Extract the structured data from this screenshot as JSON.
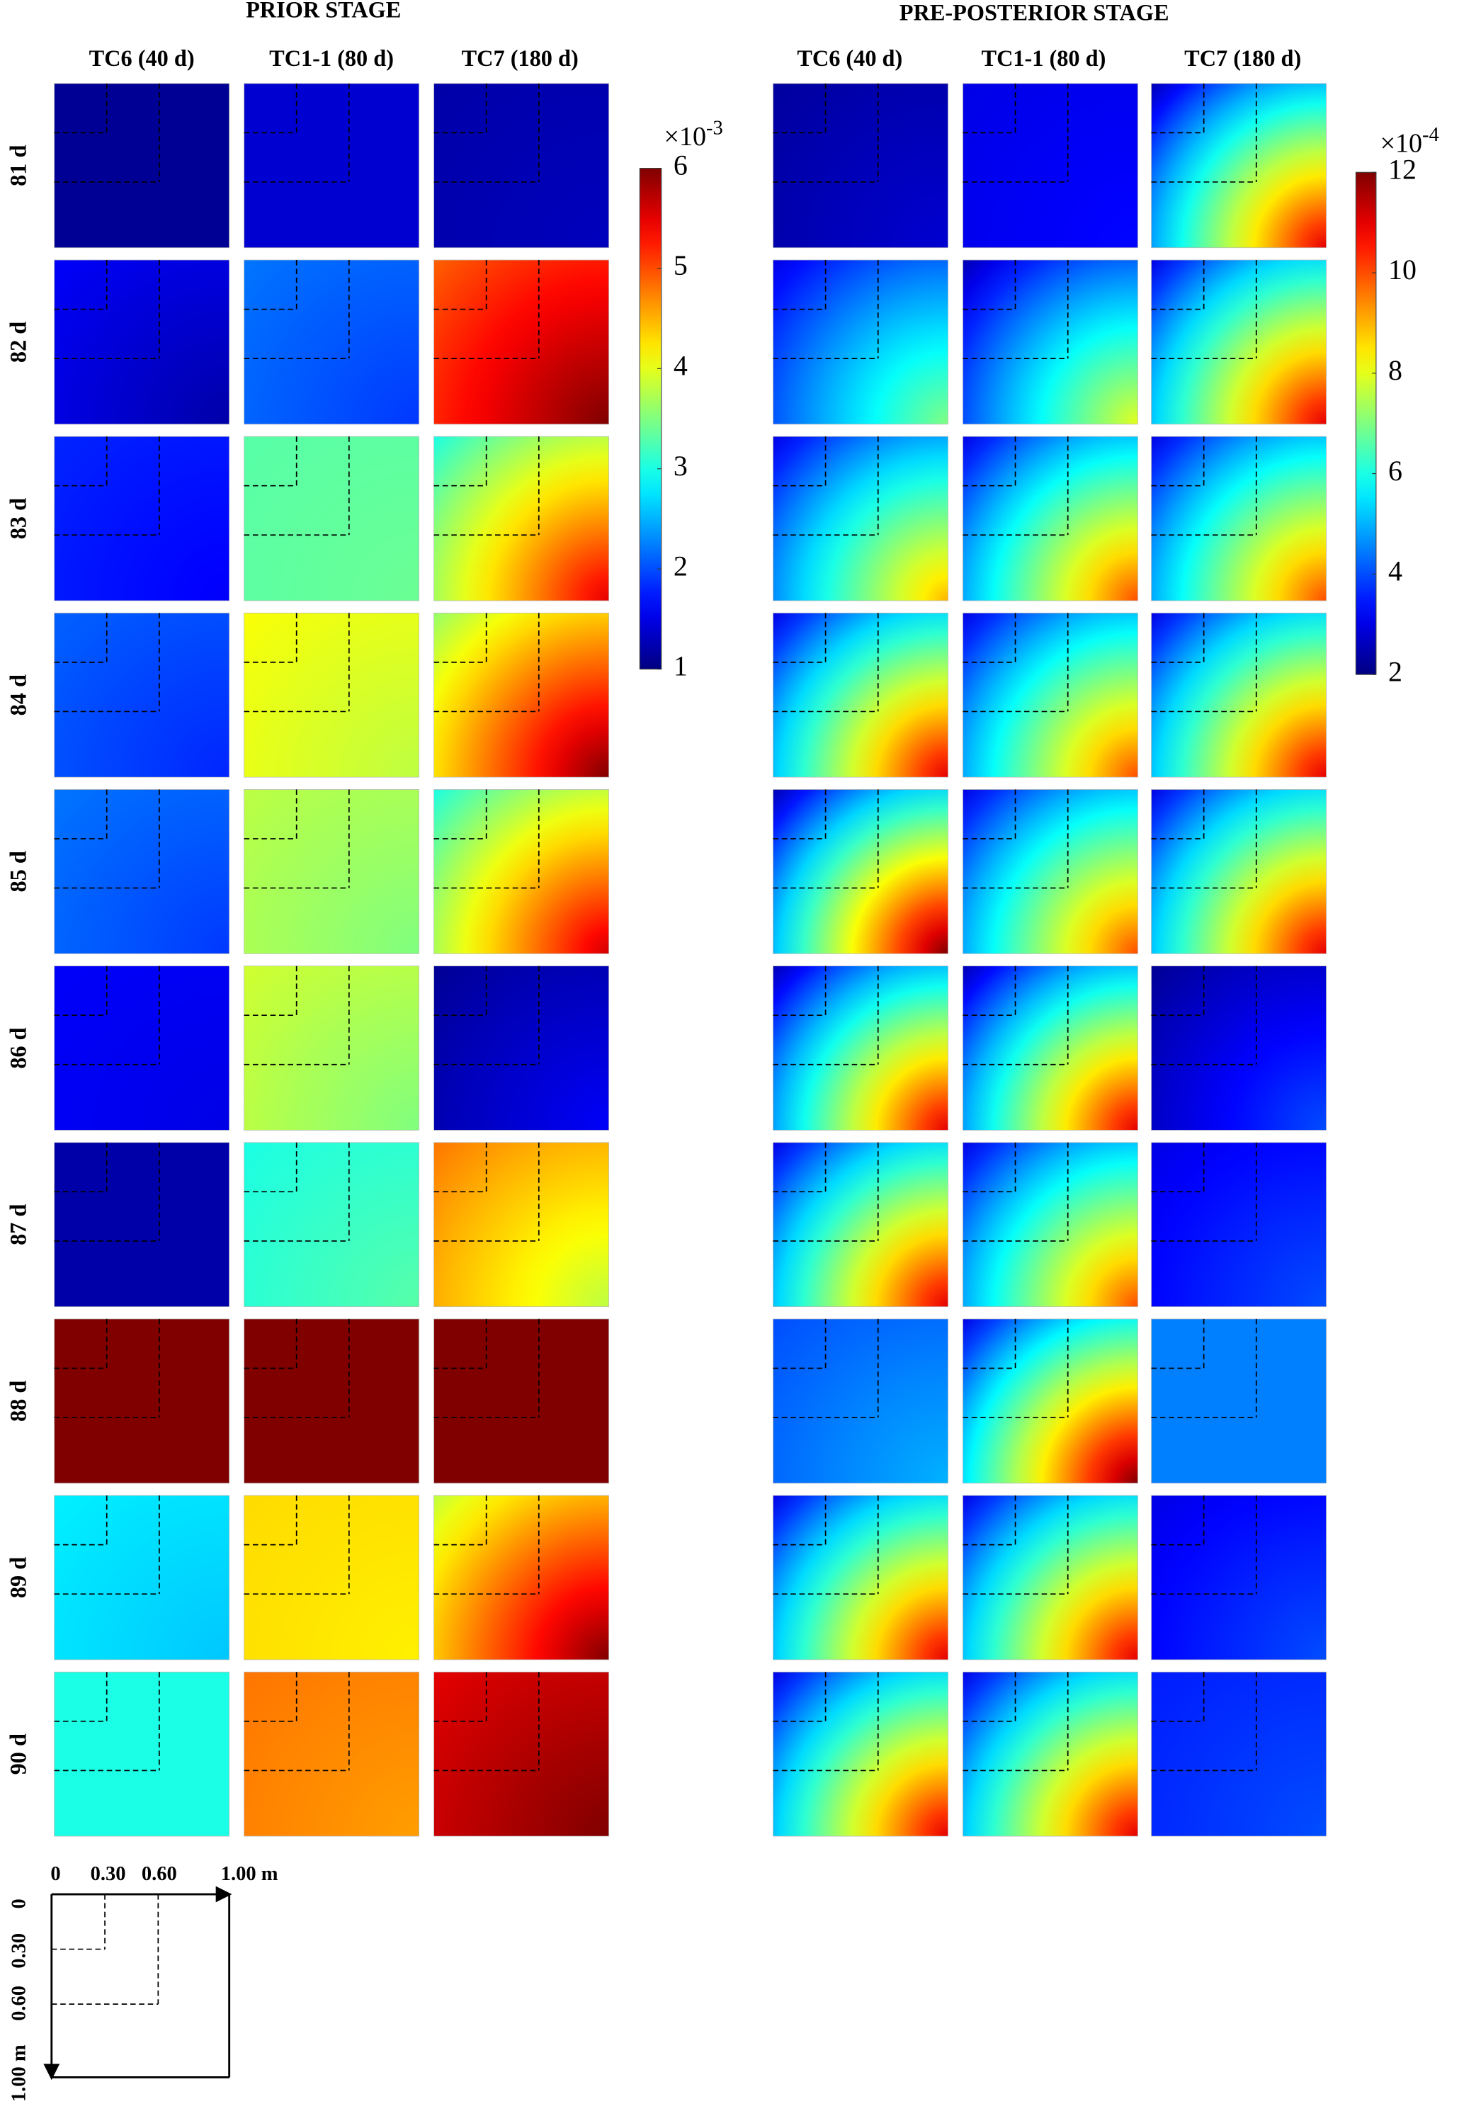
{
  "chart_data": [
    {
      "type": "heatmap",
      "title": "PRIOR STAGE",
      "columns": [
        "TC6 (40 d)",
        "TC1-1 (80 d)",
        "TC7 (180 d)"
      ],
      "rows": [
        "81 d",
        "82 d",
        "83 d",
        "84 d",
        "85 d",
        "86 d",
        "87 d",
        "88 d",
        "89 d",
        "90 d"
      ],
      "values": [
        [
          [
            1.1,
            1.1
          ],
          [
            1.4,
            1.4
          ],
          [
            1.2,
            1.3
          ]
        ],
        [
          [
            1.6,
            1.2
          ],
          [
            2.2,
            1.9
          ],
          [
            4.9,
            6
          ]
        ],
        [
          [
            1.8,
            1.6
          ],
          [
            3.3,
            3.4
          ],
          [
            3,
            5.5
          ]
        ],
        [
          [
            2.1,
            1.8
          ],
          [
            4.1,
            3.8
          ],
          [
            3.6,
            6
          ]
        ],
        [
          [
            2.2,
            1.9
          ],
          [
            3.8,
            3.5
          ],
          [
            3,
            5.6
          ]
        ],
        [
          [
            1.6,
            1.5
          ],
          [
            3.9,
            3.5
          ],
          [
            1.1,
            1.6
          ]
        ],
        [
          [
            1.2,
            1.2
          ],
          [
            3,
            3.3
          ],
          [
            4.8,
            3.8
          ]
        ],
        [
          [
            6,
            6
          ],
          [
            6,
            6
          ],
          [
            6,
            6
          ]
        ],
        [
          [
            2.8,
            2.6
          ],
          [
            4.3,
            4.2
          ],
          [
            3.8,
            6
          ]
        ],
        [
          [
            3,
            3
          ],
          [
            4.8,
            4.6
          ],
          [
            5.5,
            6
          ]
        ]
      ],
      "clim": [
        1,
        6
      ],
      "cticks": [
        1,
        2,
        3,
        4,
        5,
        6
      ],
      "colorbar_base": "×10",
      "colorbar_exponent": "-3",
      "colormap": "jet"
    },
    {
      "type": "heatmap",
      "title": "PRE-POSTERIOR STAGE",
      "columns": [
        "TC6 (40 d)",
        "TC1-1 (80 d)",
        "TC7 (180 d)"
      ],
      "values": [
        [
          [
            2.3,
            2.8
          ],
          [
            3,
            3.3
          ],
          [
            2.5,
            11
          ]
        ],
        [
          [
            3,
            7
          ],
          [
            2.5,
            8
          ],
          [
            3,
            11
          ]
        ],
        [
          [
            3,
            9
          ],
          [
            3,
            10
          ],
          [
            3,
            10
          ]
        ],
        [
          [
            3,
            11
          ],
          [
            3,
            10
          ],
          [
            3,
            11
          ]
        ],
        [
          [
            2.5,
            12
          ],
          [
            3,
            10
          ],
          [
            3,
            11
          ]
        ],
        [
          [
            2.5,
            11
          ],
          [
            2.5,
            11
          ],
          [
            2.2,
            4
          ]
        ],
        [
          [
            3,
            11
          ],
          [
            3,
            10
          ],
          [
            3,
            4
          ]
        ],
        [
          [
            4,
            5
          ],
          [
            3,
            12
          ],
          [
            4.5,
            4.5
          ]
        ],
        [
          [
            3,
            11
          ],
          [
            3,
            11
          ],
          [
            3,
            4
          ]
        ],
        [
          [
            3,
            11
          ],
          [
            3,
            11
          ],
          [
            3.5,
            4
          ]
        ]
      ],
      "clim": [
        2,
        12
      ],
      "cticks": [
        2,
        4,
        6,
        8,
        10,
        12
      ],
      "colorbar_base": "×10",
      "colorbar_exponent": "-4",
      "colormap": "jet"
    }
  ],
  "schematic": {
    "x_labels": [
      "0",
      "0.30",
      "0.60",
      "1.00 m"
    ],
    "y_labels": [
      "0",
      "0.30",
      "0.60",
      "1.00 m"
    ]
  }
}
